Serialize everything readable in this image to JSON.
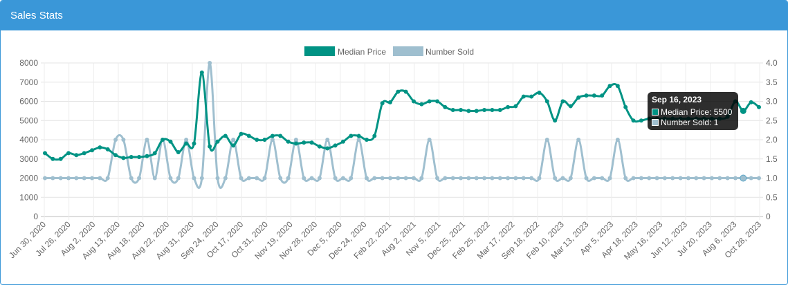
{
  "header": {
    "title": "Sales Stats"
  },
  "colors": {
    "header": "#3a97d8",
    "median_price": "#009384",
    "number_sold": "#9fbfcf"
  },
  "tooltip": {
    "title": "Sep 16, 2023",
    "rows": [
      {
        "label": "Median Price: 5500",
        "color": "#009384"
      },
      {
        "label": "Number Sold: 1",
        "color": "#9fbfcf"
      }
    ]
  },
  "chart_data": {
    "type": "line",
    "title": "",
    "legend_position": "top",
    "grid": true,
    "x_tick_labels": [
      "Jun 30, 2020",
      "Jul 26, 2020",
      "Aug 2, 2020",
      "Aug 13, 2020",
      "Aug 18, 2020",
      "Aug 22, 2020",
      "Aug 31, 2020",
      "Sep 24, 2020",
      "Oct 17, 2020",
      "Oct 31, 2020",
      "Nov 19, 2020",
      "Nov 28, 2020",
      "Dec 5, 2020",
      "Dec 24, 2020",
      "Feb 22, 2021",
      "Aug 2, 2021",
      "Nov 5, 2021",
      "Dec 25, 2021",
      "Feb 25, 2022",
      "Mar 17, 2022",
      "Sep 18, 2022",
      "Feb 10, 2023",
      "Mar 13, 2023",
      "Apr 5, 2023",
      "Apr 18, 2023",
      "May 16, 2023",
      "Jun 12, 2023",
      "Jul 20, 2023",
      "Aug 6, 2023",
      "Oct 28, 2023"
    ],
    "y_left": {
      "min": 0,
      "max": 8000,
      "ticks": [
        "0",
        "1000",
        "2000",
        "3000",
        "4000",
        "5000",
        "6000",
        "7000",
        "8000"
      ]
    },
    "y_right": {
      "min": 0,
      "max": 4,
      "ticks": [
        "0",
        "0.5",
        "1.0",
        "1.5",
        "2.0",
        "2.5",
        "3.0",
        "3.5",
        "4.0"
      ]
    },
    "highlight_index": 89,
    "series": [
      {
        "name": "Median Price",
        "axis": "left",
        "values": [
          3300,
          3000,
          3000,
          3300,
          3200,
          3300,
          3450,
          3600,
          3500,
          3200,
          3050,
          3100,
          3100,
          3150,
          3300,
          4000,
          3900,
          3350,
          3800,
          3800,
          7500,
          3650,
          3900,
          4200,
          3700,
          4300,
          4200,
          4000,
          4000,
          4200,
          4200,
          3900,
          3800,
          3850,
          3850,
          3650,
          3550,
          3700,
          3900,
          4200,
          4200,
          4000,
          4200,
          5900,
          5950,
          6500,
          6500,
          6000,
          5850,
          6000,
          6000,
          5700,
          5550,
          5550,
          5500,
          5500,
          5550,
          5550,
          5550,
          5700,
          5750,
          6250,
          6250,
          6450,
          6000,
          5000,
          6000,
          5750,
          6200,
          6300,
          6300,
          6300,
          6800,
          6800,
          5700,
          5000,
          5000,
          5100,
          5100,
          5100,
          5100,
          5100,
          5100,
          5100,
          5100,
          5100,
          5100,
          5200,
          6000,
          5500,
          5950,
          5700
        ]
      },
      {
        "name": "Number Sold",
        "axis": "right",
        "values": [
          1,
          1,
          1,
          1,
          1,
          1,
          1,
          1,
          1,
          2,
          2,
          1,
          1,
          2,
          1,
          2,
          1,
          1,
          2,
          1,
          1,
          4,
          1,
          1,
          2,
          1,
          1,
          1,
          1,
          2,
          1,
          1,
          2,
          1,
          1,
          1,
          2,
          1,
          1,
          1,
          2,
          1,
          1,
          1,
          1,
          1,
          1,
          1,
          1,
          2,
          1,
          1,
          1,
          1,
          1,
          1,
          1,
          1,
          1,
          1,
          1,
          1,
          1,
          1,
          2,
          1,
          1,
          1,
          2,
          1,
          1,
          1,
          1,
          2,
          1,
          1,
          1,
          1,
          1,
          1,
          1,
          1,
          1,
          1,
          1,
          1,
          1,
          1,
          1,
          1,
          1,
          1
        ]
      }
    ]
  }
}
